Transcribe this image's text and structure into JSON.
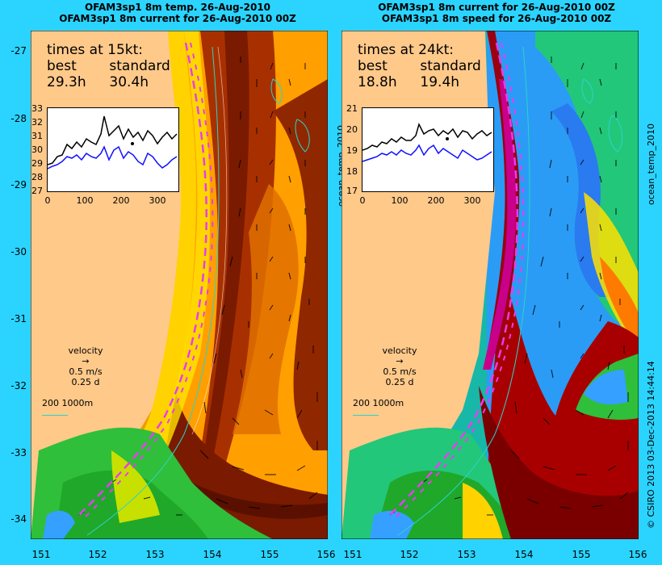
{
  "titles": {
    "left_line1": "OFAM3sp1 8m temp. 26-Aug-2010",
    "left_line2": "OFAM3sp1 8m current for 26-Aug-2010 00Z",
    "right_line1": "OFAM3sp1 8m current for 26-Aug-2010 00Z",
    "right_line2": "OFAM3sp1 8m speed for 26-Aug-2010 00Z"
  },
  "lat_ticks": [
    "-27",
    "-28",
    "-29",
    "-30",
    "-31",
    "-32",
    "-33",
    "-34"
  ],
  "lon_ticks": [
    "151",
    "152",
    "153",
    "154",
    "155",
    "156"
  ],
  "left_panel": {
    "times_heading": "times at 15kt:",
    "best_label": "best",
    "standard_label": "standard",
    "best_value": "29.3h",
    "standard_value": "30.4h",
    "inset_yticks": [
      "33",
      "32",
      "31",
      "30",
      "29",
      "28",
      "27"
    ],
    "inset_xticks": [
      "0",
      "100",
      "200",
      "300"
    ]
  },
  "right_panel": {
    "times_heading": "times at 24kt:",
    "best_label": "best",
    "standard_label": "standard",
    "best_value": "18.8h",
    "standard_value": "19.4h",
    "inset_yticks": [
      "21",
      "20",
      "19",
      "18",
      "17"
    ],
    "inset_xticks": [
      "0",
      "100",
      "200",
      "300"
    ]
  },
  "velocity_key": {
    "label": "velocity",
    "speed": "0.5 m/s",
    "duration": "0.25 d"
  },
  "depth_key": "200  1000m",
  "side_label_left": "ocean_temp_2010",
  "side_label_right": "ocean_temp_2010",
  "credit": "© CSIRO 2013   03-Dec-2013 14:44:14",
  "colors": {
    "background": "#2ad4ff",
    "land": "#ffc98a",
    "route": "#e83cf0",
    "best_series": "#000000",
    "standard_series": "#1010ff"
  }
}
